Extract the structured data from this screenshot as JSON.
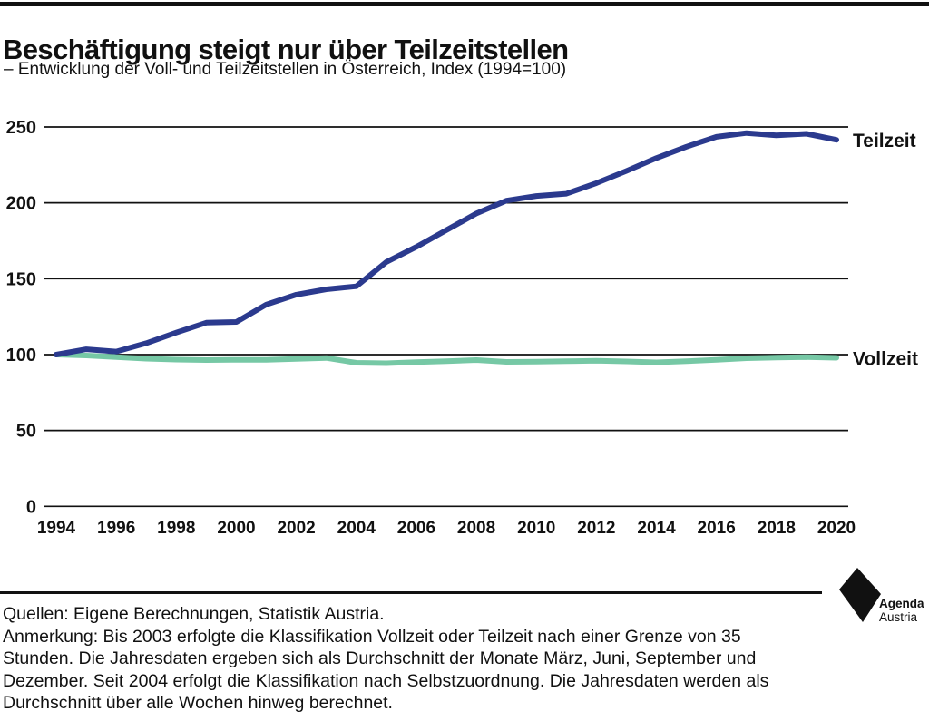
{
  "page": {
    "title": "Beschäftigung steigt nur über Teilzeitstellen",
    "subtitle": "– Entwicklung der Voll- und Teilzeitstellen in Österreich, Index (1994=100)"
  },
  "chart_data": {
    "type": "line",
    "title": "Beschäftigung steigt nur über Teilzeitstellen",
    "subtitle": "– Entwicklung der Voll- und Teilzeitstellen in Österreich, Index (1994=100)",
    "x": [
      1994,
      1995,
      1996,
      1997,
      1998,
      1999,
      2000,
      2001,
      2002,
      2003,
      2004,
      2005,
      2006,
      2007,
      2008,
      2009,
      2010,
      2011,
      2012,
      2013,
      2014,
      2015,
      2016,
      2017,
      2018,
      2019,
      2020
    ],
    "series": [
      {
        "name": "Teilzeit",
        "color": "#2b3a8e",
        "values": [
          100,
          103.5,
          102,
          107.5,
          114.5,
          121,
          121.5,
          133,
          139.5,
          143,
          145,
          161,
          171,
          182,
          193,
          201.5,
          204.5,
          206,
          213,
          221,
          229.5,
          237,
          243.5,
          246,
          244.5,
          245.5,
          241.5
        ]
      },
      {
        "name": "Vollzeit",
        "color": "#76c8a5",
        "values": [
          100,
          99.4,
          98.4,
          97.3,
          96.7,
          96.4,
          96.6,
          96.6,
          97.2,
          97.8,
          94.6,
          94.3,
          95,
          95.7,
          96.4,
          95.2,
          95.3,
          95.6,
          95.9,
          95.5,
          94.9,
          95.6,
          96.6,
          97.6,
          98.1,
          98.3,
          97.9
        ]
      }
    ],
    "ylim": [
      0,
      250
    ],
    "yticks": [
      0,
      50,
      100,
      150,
      200,
      250
    ],
    "xticks": [
      1994,
      1996,
      1998,
      2000,
      2002,
      2004,
      2006,
      2008,
      2010,
      2012,
      2014,
      2016,
      2018,
      2020
    ],
    "grid": "horizontal",
    "legend_position": "labels-at-line-end"
  },
  "footer": {
    "source": "Quellen: Eigene Berechnungen, Statistik Austria.",
    "note": "Anmerkung: Bis 2003 erfolgte die Klassifikation Vollzeit oder Teilzeit nach einer Grenze von 35 Stunden. Die Jahresdaten ergeben sich als Durchschnitt der Monate März, Juni, September und Dezember. Seit 2004 erfolgt die Klassifikation nach Selbstzuordnung. Die Jahresdaten werden als Durchschnitt über alle Wochen hinweg berechnet."
  },
  "branding": {
    "line1": "Agenda",
    "line2": "Austria",
    "logo": "agenda-austria-diamond",
    "logo_color": "#111111"
  },
  "colors": {
    "teilzeit": "#2b3a8e",
    "vollzeit": "#76c8a5",
    "ink": "#111111"
  }
}
